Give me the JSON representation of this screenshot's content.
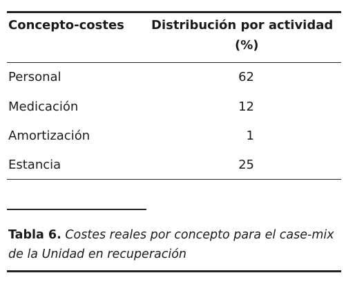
{
  "table": {
    "header": {
      "col1": "Concepto-costes",
      "col2": [
        "Distribución por actividad",
        "(%)"
      ]
    },
    "rows": [
      [
        "Personal",
        62
      ],
      [
        "Medicación",
        12
      ],
      [
        "Amortización",
        1
      ],
      [
        "Estancia",
        25
      ]
    ]
  },
  "caption": {
    "label": "Tabla 6.",
    "text": "Costes reales por concepto para el case-mix de la Unidad en recuperación"
  }
}
